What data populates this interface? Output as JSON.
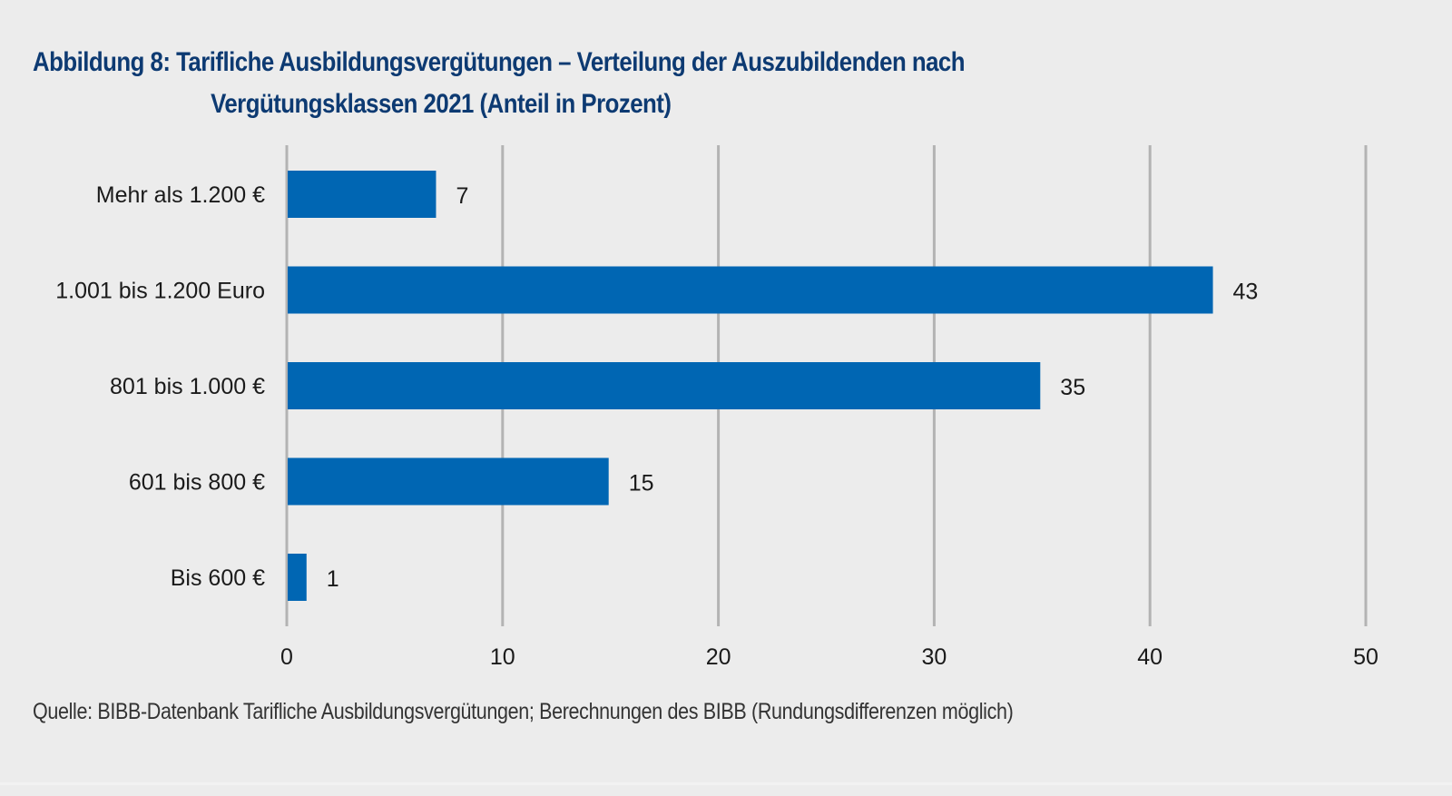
{
  "chart_data": {
    "type": "bar",
    "orientation": "horizontal",
    "title": "Abbildung 8: Tarifliche Ausbildungsvergütungen – Verteilung der Auszubildenden nach Vergütungsklassen 2021 (Anteil in Prozent)",
    "title_lines": [
      "Abbildung 8: Tarifliche Ausbildungsvergütungen – Verteilung der Auszubildenden nach",
      "Vergütungsklassen 2021 (Anteil in Prozent)"
    ],
    "categories": [
      "Mehr als 1.200 €",
      "1.001 bis 1.200 Euro",
      "801 bis 1.000 €",
      "601 bis 800 €",
      "Bis 600 €"
    ],
    "values": [
      7,
      43,
      35,
      15,
      1
    ],
    "data_labels": [
      "7",
      "43",
      "35",
      "15",
      "1"
    ],
    "xlabel": "",
    "ylabel": "",
    "xlim": [
      0,
      50
    ],
    "xticks": [
      0,
      10,
      20,
      30,
      40,
      50
    ],
    "xtick_labels": [
      "0",
      "10",
      "20",
      "30",
      "40",
      "50"
    ],
    "grid": "vertical",
    "legend": "none",
    "bar_color": "#0066b3",
    "grid_color": "#b3b3b3",
    "title_color": "#0d3a72",
    "background_color": "#ececec",
    "source": "Quelle: BIBB-Datenbank Tarifliche Ausbildungsvergütungen; Berechnungen des BIBB (Rundungsdifferenzen möglich)"
  }
}
